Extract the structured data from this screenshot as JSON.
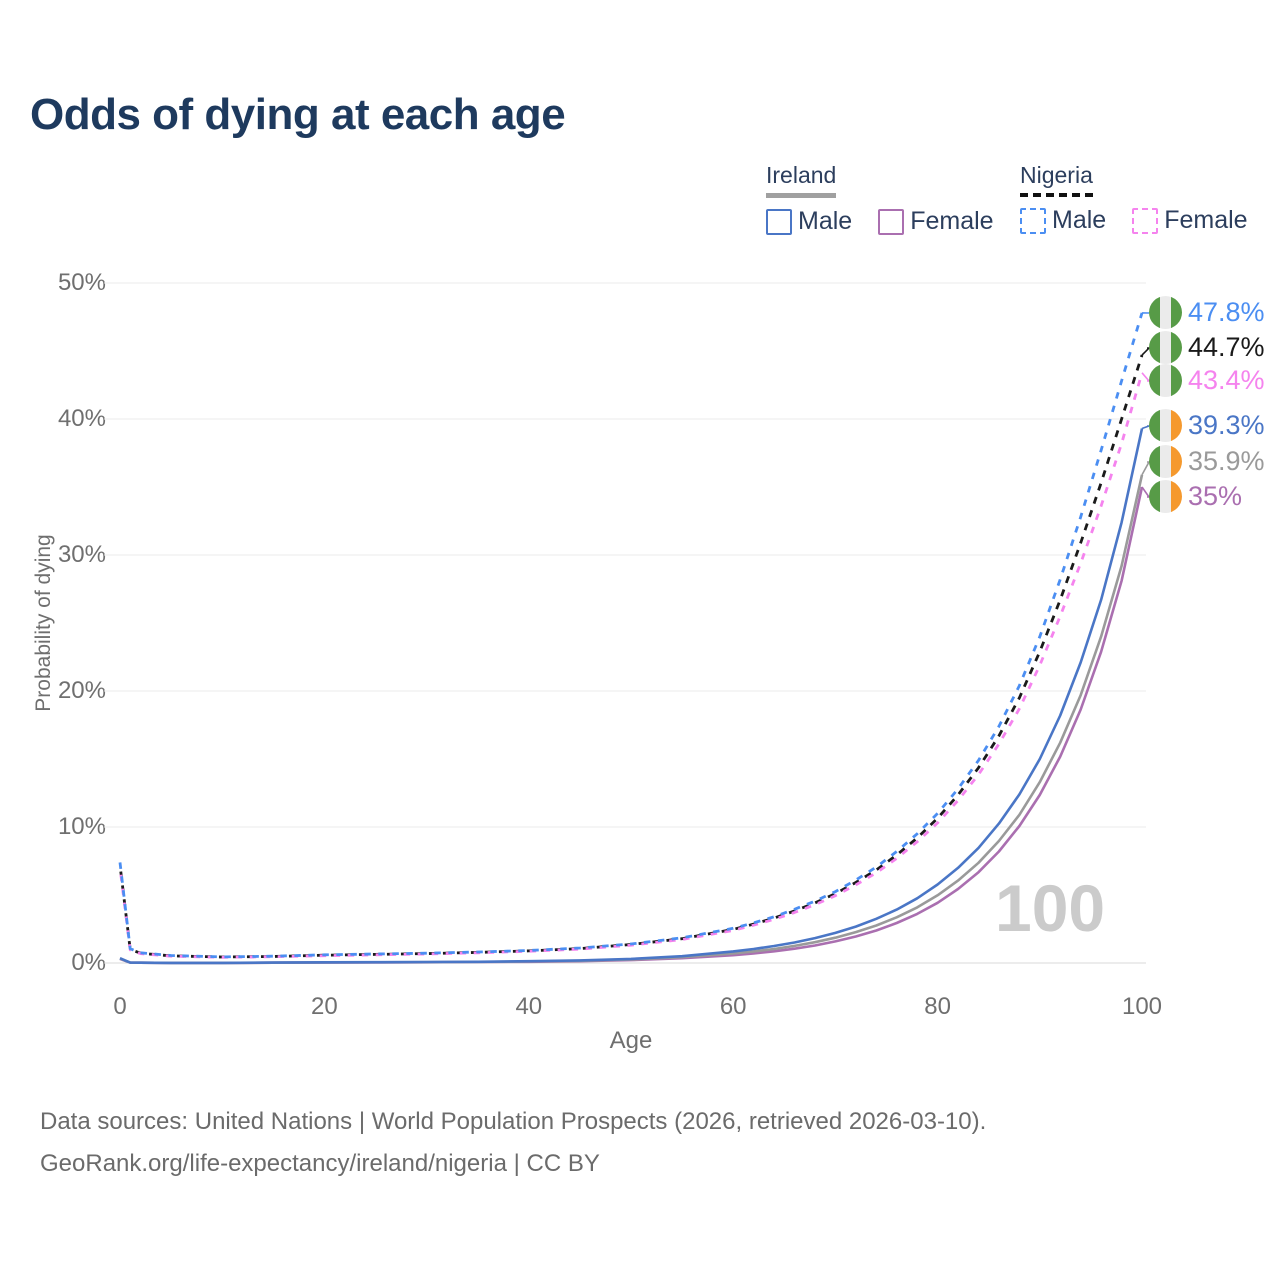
{
  "title": "Odds of dying at each age",
  "watermark": "100",
  "legend": {
    "groups": [
      {
        "country": "Ireland",
        "style": "solid",
        "underline_color": "#a0a0a0",
        "items": [
          {
            "label": "Male",
            "color": "#4a76c6"
          },
          {
            "label": "Female",
            "color": "#aa6fb0"
          }
        ]
      },
      {
        "country": "Nigeria",
        "style": "dashed",
        "underline_color": "#111111",
        "items": [
          {
            "label": "Male",
            "color": "#4b8ef2"
          },
          {
            "label": "Female",
            "color": "#f583ee"
          }
        ]
      }
    ]
  },
  "axes": {
    "y_label": "Probability of dying",
    "x_label": "Age",
    "y_ticks": [
      "50%",
      "40%",
      "30%",
      "20%",
      "10%",
      "0%"
    ],
    "x_ticks": [
      "0",
      "20",
      "40",
      "60",
      "80",
      "100"
    ]
  },
  "footer": {
    "line1": "Data sources: United Nations | World Population Prospects (2026, retrieved 2026-03-10).",
    "line2": "GeoRank.org/life-expectancy/ireland/nigeria | CC BY"
  },
  "chart_data": {
    "type": "line",
    "title": "Odds of dying at each age",
    "xlabel": "Age",
    "ylabel": "Probability of dying",
    "xlim": [
      0,
      100
    ],
    "ylim": [
      0,
      50
    ],
    "grid": "horizontal",
    "legend_position": "top-right",
    "x": [
      0,
      1,
      2,
      5,
      10,
      15,
      20,
      25,
      30,
      35,
      40,
      45,
      50,
      55,
      60,
      62,
      64,
      66,
      68,
      70,
      72,
      74,
      76,
      78,
      80,
      82,
      84,
      86,
      88,
      90,
      92,
      94,
      96,
      98,
      100
    ],
    "flags": {
      "nigeria": [
        "#579b47",
        "#ebebeb",
        "#579b47"
      ],
      "ireland": [
        "#579b47",
        "#ebebeb",
        "#f5992e"
      ]
    },
    "series": [
      {
        "id": "nigeria-male",
        "name": "Nigeria Male",
        "color": "#4b8ef2",
        "dash": true,
        "flag": "nigeria",
        "end_label": "47.8%",
        "values": [
          7.4,
          1.05,
          0.75,
          0.55,
          0.45,
          0.5,
          0.6,
          0.66,
          0.72,
          0.81,
          0.92,
          1.1,
          1.4,
          1.85,
          2.55,
          2.95,
          3.4,
          3.95,
          4.55,
          5.25,
          6.1,
          7.05,
          8.2,
          9.5,
          11.0,
          12.8,
          14.9,
          17.4,
          20.4,
          24.0,
          28.2,
          32.8,
          37.7,
          42.8,
          47.8
        ]
      },
      {
        "id": "nigeria-both-sexes",
        "name": "Nigeria",
        "color": "#1a1a1a",
        "dash": true,
        "flag": "nigeria",
        "end_label": "44.7%",
        "values": [
          7.2,
          1.0,
          0.72,
          0.52,
          0.44,
          0.48,
          0.57,
          0.63,
          0.69,
          0.78,
          0.89,
          1.06,
          1.36,
          1.79,
          2.47,
          2.86,
          3.3,
          3.82,
          4.42,
          5.1,
          5.92,
          6.84,
          7.94,
          9.2,
          10.65,
          12.35,
          14.35,
          16.7,
          19.5,
          22.9,
          26.7,
          30.9,
          35.3,
          40.0,
          44.7
        ]
      },
      {
        "id": "nigeria-female",
        "name": "Nigeria Female",
        "color": "#f583ee",
        "dash": true,
        "flag": "nigeria",
        "end_label": "43.4%",
        "values": [
          7.0,
          0.96,
          0.69,
          0.5,
          0.42,
          0.46,
          0.54,
          0.6,
          0.66,
          0.75,
          0.86,
          1.02,
          1.31,
          1.73,
          2.4,
          2.78,
          3.21,
          3.71,
          4.29,
          4.95,
          5.74,
          6.63,
          7.69,
          8.91,
          10.3,
          11.95,
          13.85,
          16.1,
          18.7,
          21.9,
          25.5,
          29.4,
          33.6,
          38.2,
          43.4
        ]
      },
      {
        "id": "ireland-male",
        "name": "Ireland Male",
        "color": "#4a76c6",
        "dash": false,
        "flag": "ireland",
        "end_label": "39.3%",
        "values": [
          0.35,
          0.03,
          0.02,
          0.01,
          0.01,
          0.03,
          0.05,
          0.06,
          0.07,
          0.09,
          0.13,
          0.19,
          0.3,
          0.5,
          0.85,
          1.03,
          1.25,
          1.51,
          1.83,
          2.21,
          2.68,
          3.25,
          3.93,
          4.76,
          5.77,
          6.99,
          8.46,
          10.25,
          12.4,
          15.0,
          18.2,
          22.1,
          26.7,
          32.4,
          39.3
        ]
      },
      {
        "id": "ireland-both-sexes",
        "name": "Ireland",
        "color": "#9a9a9a",
        "dash": false,
        "flag": "ireland",
        "end_label": "35.9%",
        "values": [
          0.32,
          0.03,
          0.02,
          0.01,
          0.01,
          0.02,
          0.04,
          0.05,
          0.06,
          0.08,
          0.11,
          0.16,
          0.26,
          0.43,
          0.7,
          0.85,
          1.03,
          1.26,
          1.53,
          1.86,
          2.27,
          2.76,
          3.36,
          4.09,
          4.98,
          6.06,
          7.37,
          8.97,
          10.9,
          13.3,
          16.2,
          19.7,
          24.0,
          29.2,
          35.9
        ]
      },
      {
        "id": "ireland-female",
        "name": "Ireland Female",
        "color": "#aa6fb0",
        "dash": false,
        "flag": "ireland",
        "end_label": "35%",
        "values": [
          0.3,
          0.02,
          0.02,
          0.01,
          0.01,
          0.02,
          0.03,
          0.04,
          0.05,
          0.07,
          0.09,
          0.13,
          0.21,
          0.35,
          0.57,
          0.7,
          0.86,
          1.05,
          1.29,
          1.59,
          1.95,
          2.39,
          2.94,
          3.61,
          4.43,
          5.44,
          6.68,
          8.2,
          10.07,
          12.36,
          15.18,
          18.64,
          22.88,
          28.1,
          35.0
        ]
      }
    ]
  }
}
